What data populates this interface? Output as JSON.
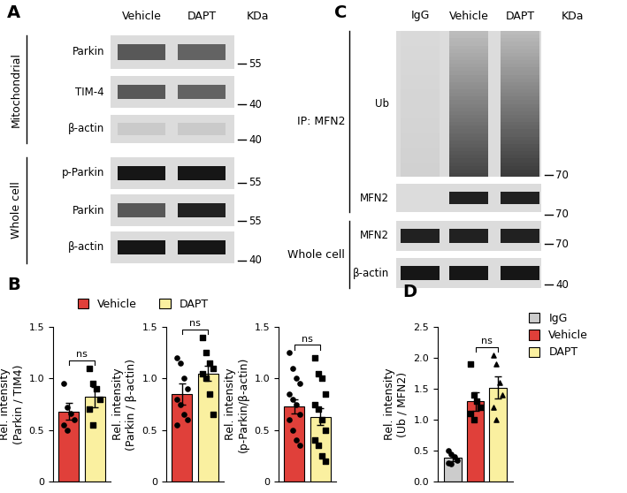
{
  "panel_labels": [
    "A",
    "B",
    "C",
    "D"
  ],
  "blots": [
    {
      "label": "A",
      "columns": [
        "Vehicle",
        "DAPT"
      ],
      "unit": "KDa",
      "groups": [
        {
          "name": "Mitochondrial",
          "rows": [
            {
              "label": "Parkin",
              "marker": 55
            },
            {
              "label": "TIM-4",
              "marker": 40
            },
            {
              "label": "β-actin",
              "marker": 40
            }
          ]
        },
        {
          "name": "Whole cell",
          "rows": [
            {
              "label": "p-Parkin",
              "marker": 55
            },
            {
              "label": "Parkin",
              "marker": 55
            },
            {
              "label": "β-actin",
              "marker": 40
            }
          ]
        }
      ]
    },
    {
      "label": "C",
      "columns": [
        "IgG",
        "Vehicle",
        "DAPT"
      ],
      "unit": "KDa",
      "groups": [
        {
          "name": "IP: MFN2",
          "rows": [
            {
              "label": "Ub",
              "marker": 70
            },
            {
              "label": "MFN2",
              "marker": 70
            }
          ]
        },
        {
          "name": "Whole cell",
          "rows": [
            {
              "label": "MFN2",
              "marker": 70
            },
            {
              "label": "β-actin",
              "marker": 40
            }
          ]
        }
      ]
    }
  ],
  "chart_data": [
    {
      "type": "bar",
      "y_label": "Rel. intensity\n(Parkin / TIM4)",
      "categories": [
        null
      ],
      "series": [
        {
          "name": "Vehicle",
          "color": "#e0403a",
          "marker": "circle",
          "values": [
            0.68
          ],
          "error": [
            0.08
          ],
          "points": [
            [
              0.95,
              0.72,
              0.66,
              0.6,
              0.55,
              0.5
            ]
          ]
        },
        {
          "name": "DAPT",
          "color": "#faf0a0",
          "marker": "square",
          "values": [
            0.82
          ],
          "error": [
            0.1
          ],
          "points": [
            [
              1.1,
              0.95,
              0.9,
              0.8,
              0.7,
              0.55
            ]
          ]
        }
      ],
      "ylim": [
        0,
        1.5
      ],
      "yticks": [
        0,
        0.5,
        1.0,
        1.5
      ],
      "tick_labels": "y",
      "legend": "top",
      "annotations": [
        {
          "text": "ns",
          "series": [
            "Vehicle",
            "DAPT"
          ]
        }
      ]
    },
    {
      "type": "bar",
      "y_label": "Rel. intensity\n(Parkin / β-actin)",
      "categories": [
        null
      ],
      "series": [
        {
          "name": "Vehicle",
          "color": "#e0403a",
          "marker": "circle",
          "values": [
            0.85
          ],
          "error": [
            0.1
          ],
          "points": [
            [
              1.2,
              1.15,
              1.0,
              0.9,
              0.8,
              0.75,
              0.65,
              0.6,
              0.55
            ]
          ]
        },
        {
          "name": "DAPT",
          "color": "#faf0a0",
          "marker": "square",
          "values": [
            1.05
          ],
          "error": [
            0.07
          ],
          "points": [
            [
              1.4,
              1.25,
              1.15,
              1.1,
              1.05,
              1.0,
              0.85,
              0.65
            ]
          ]
        }
      ],
      "ylim": [
        0,
        1.5
      ],
      "yticks": [
        0,
        0.5,
        1.0,
        1.5
      ],
      "tick_labels": "y",
      "annotations": [
        {
          "text": "ns",
          "series": [
            "Vehicle",
            "DAPT"
          ]
        }
      ]
    },
    {
      "type": "bar",
      "y_label": "Rel. intensity\n(p-Parkin/β-actin)",
      "categories": [
        null
      ],
      "series": [
        {
          "name": "Vehicle",
          "color": "#e0403a",
          "marker": "circle",
          "values": [
            0.73
          ],
          "error": [
            0.07
          ],
          "points": [
            [
              1.25,
              1.1,
              1.0,
              0.95,
              0.85,
              0.8,
              0.75,
              0.65,
              0.6,
              0.5,
              0.4,
              0.35
            ]
          ]
        },
        {
          "name": "DAPT",
          "color": "#faf0a0",
          "marker": "square",
          "values": [
            0.63
          ],
          "error": [
            0.08
          ],
          "points": [
            [
              1.2,
              1.05,
              1.0,
              0.85,
              0.75,
              0.7,
              0.6,
              0.5,
              0.4,
              0.35,
              0.25,
              0.2
            ]
          ]
        }
      ],
      "ylim": [
        0,
        1.5
      ],
      "yticks": [
        0,
        0.5,
        1.0,
        1.5
      ],
      "tick_labels": "y",
      "annotations": [
        {
          "text": "ns",
          "series": [
            "Vehicle",
            "DAPT"
          ]
        }
      ]
    },
    {
      "type": "bar",
      "y_label": "Rel. intensity\n(Ub / MFN2)",
      "categories": [
        null
      ],
      "series": [
        {
          "name": "IgG",
          "color": "#cccccc",
          "marker": "circle",
          "values": [
            0.38
          ],
          "error": [
            0.05
          ],
          "points": [
            [
              0.5,
              0.45,
              0.4,
              0.35,
              0.3,
              0.28
            ]
          ]
        },
        {
          "name": "Vehicle",
          "color": "#e0403a",
          "marker": "square",
          "values": [
            1.3
          ],
          "error": [
            0.15
          ],
          "points": [
            [
              1.9,
              1.4,
              1.3,
              1.2,
              1.1,
              1.0
            ]
          ]
        },
        {
          "name": "DAPT",
          "color": "#faf0a0",
          "marker": "triangle",
          "values": [
            1.52
          ],
          "error": [
            0.18
          ],
          "points": [
            [
              2.05,
              1.9,
              1.6,
              1.4,
              1.2,
              1.0
            ]
          ]
        }
      ],
      "ylim": [
        0.0,
        2.5
      ],
      "yticks": [
        0.0,
        0.5,
        1.0,
        1.5,
        2.0,
        2.5
      ],
      "tick_labels": "y",
      "legend": "right",
      "annotations": [
        {
          "text": "ns",
          "series": [
            "Vehicle",
            "DAPT"
          ]
        }
      ]
    }
  ]
}
